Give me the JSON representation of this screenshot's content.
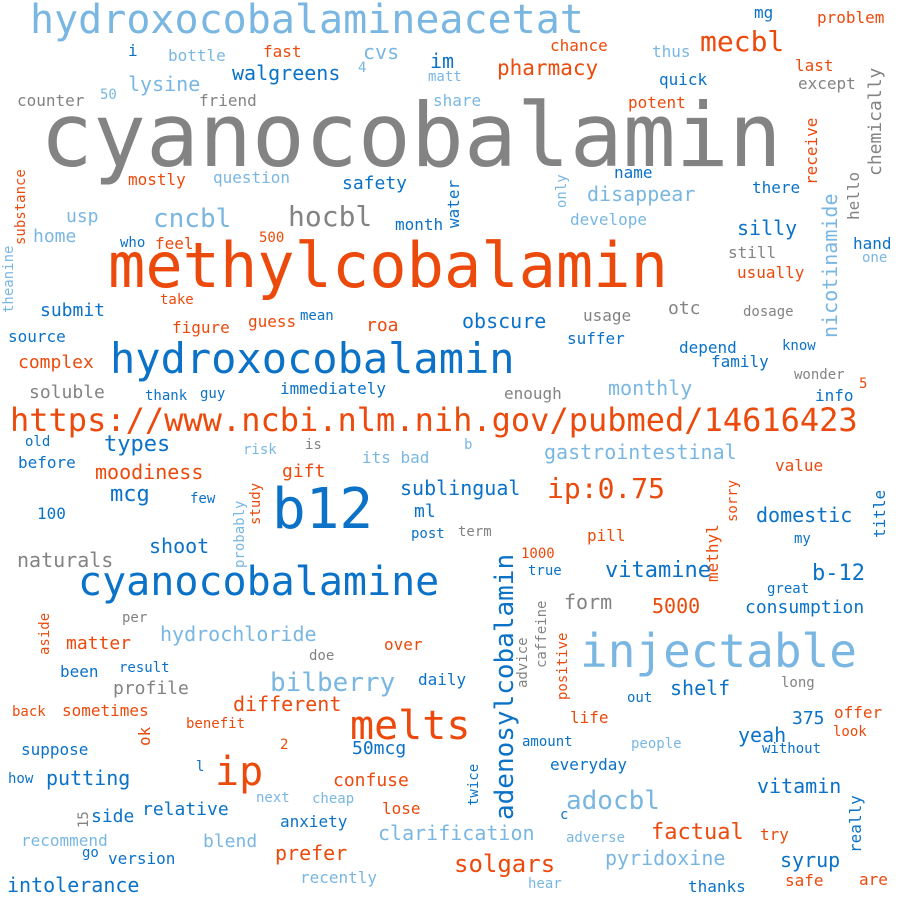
{
  "palette": {
    "dark_blue": "#0b72c7",
    "light_blue": "#79b7e2",
    "orange": "#ec4a0c",
    "gray": "#838383"
  },
  "words": [
    "cyanocobalamin",
    "methylcobalamin",
    "hydroxocobalamineacetat",
    "hydroxocobalamin",
    "https://www.ncbi.nlm.nih.gov/pubmed/14616423",
    "cyanocobalamine",
    "injectable",
    "b12",
    "melts",
    "ip",
    "adenosylcobalamin",
    "ip:0.75",
    "mecbl",
    "hocbl",
    "cncbl",
    "adocbl",
    "bilberry",
    "solgars",
    "pharmacy",
    "walgreens",
    "lysine",
    "cvs",
    "im",
    "mg",
    "problem",
    "bottle",
    "fast",
    "chance",
    "thus",
    "last",
    "except",
    "chemically",
    "counter",
    "friend",
    "share",
    "potent",
    "quick",
    "matt",
    "substance",
    "mostly",
    "question",
    "safety",
    "name",
    "there",
    "receive",
    "hello",
    "usp",
    "home",
    "disappear",
    "develope",
    "month",
    "water",
    "only",
    "silly",
    "nicotinamide",
    "hand",
    "one",
    "theanine",
    "who",
    "feel",
    "500",
    "still",
    "usually",
    "take",
    "submit",
    "source",
    "figure",
    "guess",
    "mean",
    "roa",
    "obscure",
    "usage",
    "otc",
    "dosage",
    "suffer",
    "depend",
    "family",
    "know",
    "complex",
    "soluble",
    "thank",
    "guy",
    "immediately",
    "enough",
    "monthly",
    "wonder",
    "info",
    "5",
    "types",
    "is",
    "risk",
    "b",
    "its bad",
    "gastrointestinal",
    "value",
    "old",
    "before",
    "moodiness",
    "gift",
    "mcg",
    "sublingual",
    "ml",
    "domestic",
    "title",
    "100",
    "few",
    "probably",
    "study",
    "sorry",
    "methyl",
    "post",
    "term",
    "pill",
    "my",
    "shoot",
    "naturals",
    "vitamine",
    "b-12",
    "true",
    "1000",
    "form",
    "5000",
    "consumption",
    "great",
    "caffeine",
    "advice",
    "per",
    "matter",
    "hydrochloride",
    "aside",
    "over",
    "doe",
    "been",
    "result",
    "profile",
    "positive",
    "shelf",
    "long",
    "daily",
    "back",
    "sometimes",
    "different",
    "benefit",
    "out",
    "life",
    "offer",
    "look",
    "ok",
    "yeah",
    "375",
    "50mcg",
    "suppose",
    "2",
    "amount",
    "people",
    "without",
    "how",
    "putting",
    "l",
    "everyday",
    "vitamin",
    "confuse",
    "twice",
    "relative",
    "next",
    "cheap",
    "15",
    "side",
    "lose",
    "c",
    "try",
    "recommend",
    "blend",
    "anxiety",
    "clarification",
    "factual",
    "adverse",
    "really",
    "prefer",
    "go",
    "version",
    "syrup",
    "pyridoxine",
    "intolerance",
    "recently",
    "hear",
    "thanks",
    "safe",
    "are",
    "50",
    "4",
    "i"
  ]
}
